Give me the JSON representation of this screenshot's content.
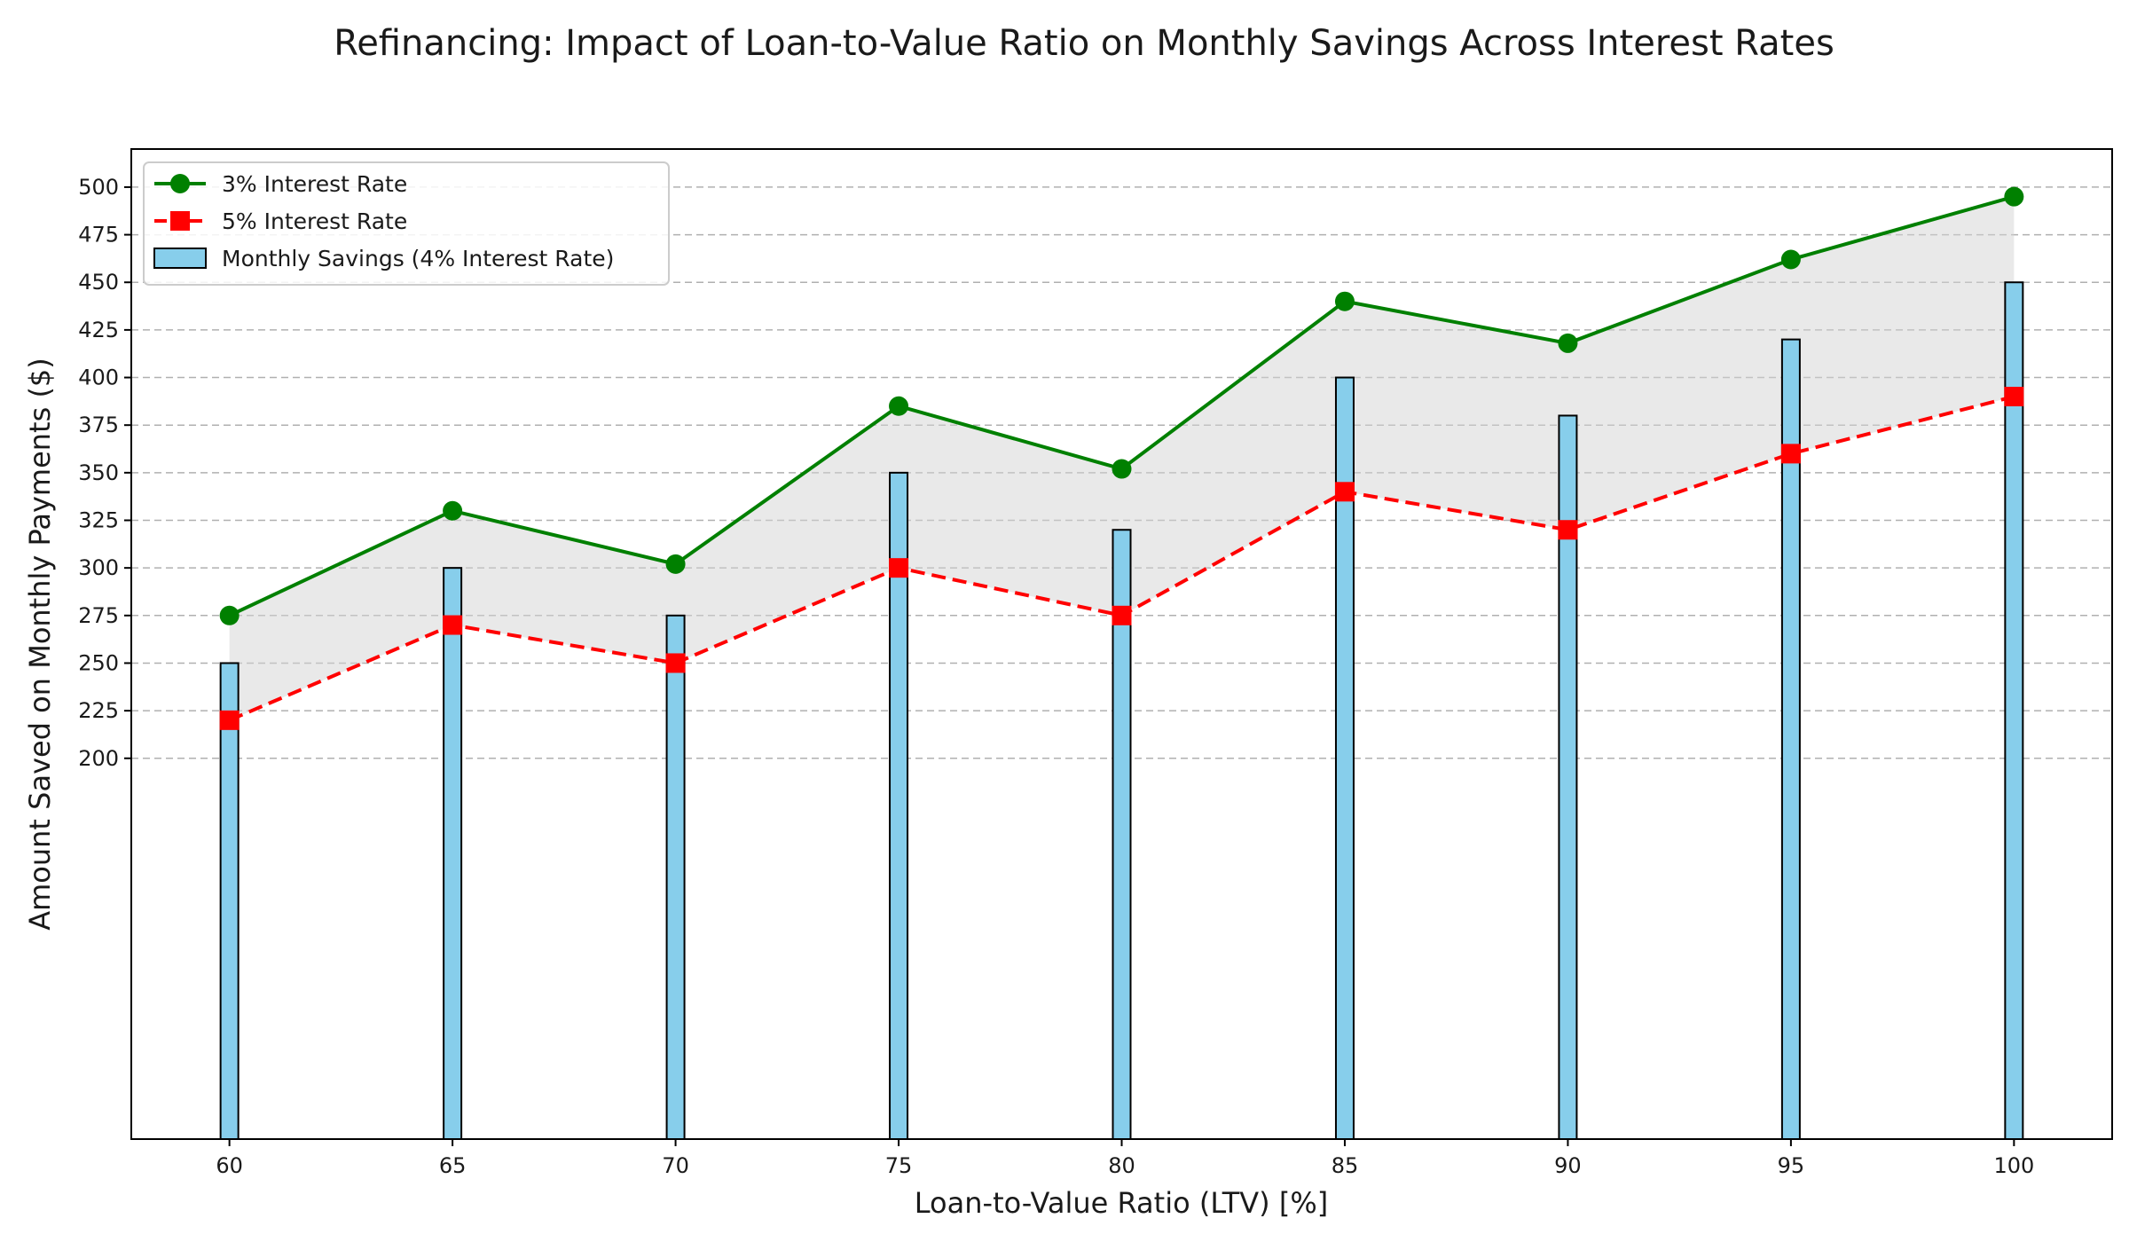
{
  "chart_data": {
    "type": "line",
    "title": "Refinancing: Impact of Loan-to-Value Ratio on Monthly Savings Across Interest Rates",
    "xlabel": "Loan-to-Value Ratio (LTV) [%]",
    "ylabel": "Amount Saved on Monthly Payments ($)",
    "x": [
      60,
      65,
      70,
      75,
      80,
      85,
      90,
      95,
      100
    ],
    "xlim": [
      57.8,
      102.2
    ],
    "ylim": [
      0,
      520
    ],
    "yticks": [
      200,
      225,
      250,
      275,
      300,
      325,
      350,
      375,
      400,
      425,
      450,
      475,
      500
    ],
    "grid": "y-dashed",
    "legend": "top-left",
    "fill_between": {
      "from": "3% Interest Rate",
      "to": "5% Interest Rate",
      "color": "#d3d3d3"
    },
    "series": [
      {
        "name": "3% Interest Rate",
        "kind": "line",
        "marker": "circle",
        "line_style": "solid",
        "color": "#008000",
        "values": [
          275,
          330,
          302,
          385,
          352,
          440,
          418,
          462,
          495
        ]
      },
      {
        "name": "5% Interest Rate",
        "kind": "line",
        "marker": "square",
        "line_style": "dashed",
        "color": "#ff0000",
        "values": [
          220,
          270,
          250,
          300,
          275,
          340,
          320,
          360,
          390
        ]
      },
      {
        "name": "Monthly Savings (4% Interest Rate)",
        "kind": "bar",
        "color": "#87ceeb",
        "values": [
          250,
          300,
          275,
          350,
          320,
          400,
          380,
          420,
          450
        ]
      }
    ]
  }
}
